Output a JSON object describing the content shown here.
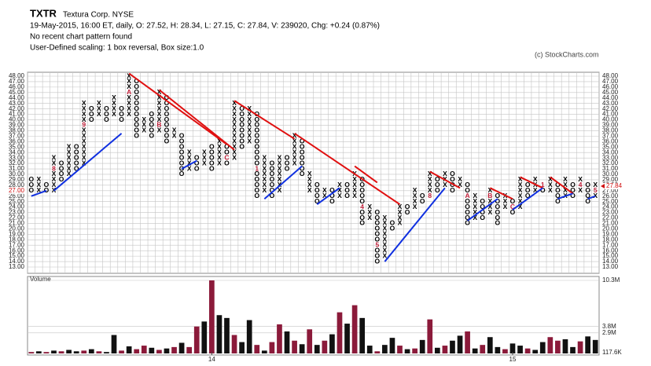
{
  "header": {
    "symbol": "TXTR",
    "company": "Textura Corp.  NYSE",
    "info": "19-May-2015, 16:00 ET, daily, O: 27.52, H: 28.34, L: 27.15, C: 27.84, V: 239020, Chg: +0.24 (0.87%)",
    "pattern": "No recent chart pattern found",
    "scaling": "User-Defined scaling: 1 box reversal, Box size:1.0",
    "copyright": "(c) StockCharts.com"
  },
  "chart_data": {
    "type": "pointfigure",
    "ylim": [
      13,
      48
    ],
    "yticks": [
      {
        "value": 13,
        "label": "13.00"
      },
      {
        "value": 14,
        "label": "14.00"
      },
      {
        "value": 15,
        "label": "15.00"
      },
      {
        "value": 16,
        "label": "16.00"
      },
      {
        "value": 17,
        "label": "17.00"
      },
      {
        "value": 18,
        "label": "18.00"
      },
      {
        "value": 19,
        "label": "19.00"
      },
      {
        "value": 20,
        "label": "20.00"
      },
      {
        "value": 21,
        "label": "21.00"
      },
      {
        "value": 22,
        "label": "22.00"
      },
      {
        "value": 23,
        "label": "23.00"
      },
      {
        "value": 24,
        "label": "24.00"
      },
      {
        "value": 25,
        "label": "25.00"
      },
      {
        "value": 26,
        "label": "26.00"
      },
      {
        "value": 27,
        "label": "27.00"
      },
      {
        "value": 28,
        "label": "28.00"
      },
      {
        "value": 29,
        "label": "29.00"
      },
      {
        "value": 30,
        "label": "30.00"
      },
      {
        "value": 31,
        "label": "31.00"
      },
      {
        "value": 32,
        "label": "32.00"
      },
      {
        "value": 33,
        "label": "33.00"
      },
      {
        "value": 34,
        "label": "34.00"
      },
      {
        "value": 35,
        "label": "35.00"
      },
      {
        "value": 36,
        "label": "36.00"
      },
      {
        "value": 37,
        "label": "37.00"
      },
      {
        "value": 38,
        "label": "38.00"
      },
      {
        "value": 39,
        "label": "39.00"
      },
      {
        "value": 40,
        "label": "40.00"
      },
      {
        "value": 41,
        "label": "41.00"
      },
      {
        "value": 42,
        "label": "42.00"
      },
      {
        "value": 43,
        "label": "43.00"
      },
      {
        "value": 44,
        "label": "44.00"
      },
      {
        "value": 45,
        "label": "45.00"
      },
      {
        "value": 46,
        "label": "46.00"
      },
      {
        "value": 47,
        "label": "47.00"
      },
      {
        "value": 48,
        "label": "48.00"
      }
    ],
    "grid": true,
    "left_marker": {
      "value": 27,
      "label": "27.00"
    },
    "last_price": {
      "value": 27.84,
      "label": "27.84"
    },
    "columns": [
      {
        "type": "O",
        "low": 27,
        "high": 29
      },
      {
        "type": "X",
        "low": 27,
        "high": 29
      },
      {
        "type": "O",
        "low": 27,
        "high": 28
      },
      {
        "type": "X",
        "low": 27,
        "high": 33,
        "marker": "8",
        "marker_at": 31
      },
      {
        "type": "O",
        "low": 29,
        "high": 32
      },
      {
        "type": "X",
        "low": 30,
        "high": 35
      },
      {
        "type": "O",
        "low": 31,
        "high": 35
      },
      {
        "type": "X",
        "low": 32,
        "high": 43,
        "marker": "9",
        "marker_at": 39
      },
      {
        "type": "O",
        "low": 40,
        "high": 42
      },
      {
        "type": "X",
        "low": 41,
        "high": 43
      },
      {
        "type": "O",
        "low": 40,
        "high": 42
      },
      {
        "type": "X",
        "low": 41,
        "high": 44
      },
      {
        "type": "O",
        "low": 40,
        "high": 42
      },
      {
        "type": "X",
        "low": 41,
        "high": 48,
        "marker": "A",
        "marker_at": 45
      },
      {
        "type": "O",
        "low": 37,
        "high": 47
      },
      {
        "type": "X",
        "low": 38,
        "high": 40
      },
      {
        "type": "O",
        "low": 37,
        "high": 41
      },
      {
        "type": "X",
        "low": 38,
        "high": 45,
        "marker": "B",
        "marker_at": 39
      },
      {
        "type": "O",
        "low": 36,
        "high": 44
      },
      {
        "type": "X",
        "low": 37,
        "high": 38
      },
      {
        "type": "O",
        "low": 30,
        "high": 37
      },
      {
        "type": "X",
        "low": 31,
        "high": 34
      },
      {
        "type": "O",
        "low": 31,
        "high": 33
      },
      {
        "type": "X",
        "low": 32,
        "high": 34
      },
      {
        "type": "O",
        "low": 31,
        "high": 35
      },
      {
        "type": "X",
        "low": 32,
        "high": 36
      },
      {
        "type": "O",
        "low": 32,
        "high": 35,
        "marker": "C",
        "marker_at": 33
      },
      {
        "type": "X",
        "low": 33,
        "high": 43
      },
      {
        "type": "O",
        "low": 35,
        "high": 42
      },
      {
        "type": "X",
        "low": 36,
        "high": 42
      },
      {
        "type": "O",
        "low": 26,
        "high": 41,
        "marker": "1",
        "marker_at": 31
      },
      {
        "type": "X",
        "low": 27,
        "high": 33
      },
      {
        "type": "O",
        "low": 26,
        "high": 32
      },
      {
        "type": "X",
        "low": 27,
        "high": 33
      },
      {
        "type": "O",
        "low": 31,
        "high": 33
      },
      {
        "type": "X",
        "low": 32,
        "high": 37
      },
      {
        "type": "O",
        "low": 30,
        "high": 36,
        "marker": "2",
        "marker_at": 29
      },
      {
        "type": "X",
        "low": 27,
        "high": 30
      },
      {
        "type": "O",
        "low": 25,
        "high": 28
      },
      {
        "type": "X",
        "low": 26,
        "high": 27
      },
      {
        "type": "O",
        "low": 25,
        "high": 27
      },
      {
        "type": "X",
        "low": 26,
        "high": 28
      },
      {
        "type": "O",
        "low": 26,
        "high": 28
      },
      {
        "type": "X",
        "low": 26,
        "high": 30
      },
      {
        "type": "O",
        "low": 21,
        "high": 29,
        "marker": "4",
        "marker_at": 24
      },
      {
        "type": "X",
        "low": 22,
        "high": 24
      },
      {
        "type": "O",
        "low": 14,
        "high": 23,
        "marker": "5",
        "marker_at": 17
      },
      {
        "type": "X",
        "low": 15,
        "high": 22
      },
      {
        "type": "O",
        "low": 20,
        "high": 21
      },
      {
        "type": "X",
        "low": 21,
        "high": 24,
        "marker": "7",
        "marker_at": 25
      },
      {
        "type": "O",
        "low": 23,
        "high": 24
      },
      {
        "type": "X",
        "low": 24,
        "high": 27
      },
      {
        "type": "O",
        "low": 25,
        "high": 26
      },
      {
        "type": "X",
        "low": 26,
        "high": 30,
        "marker": "8",
        "marker_at": 26
      },
      {
        "type": "O",
        "low": 27,
        "high": 29
      },
      {
        "type": "X",
        "low": 28,
        "high": 30
      },
      {
        "type": "O",
        "low": 27,
        "high": 30
      },
      {
        "type": "X",
        "low": 28,
        "high": 29
      },
      {
        "type": "O",
        "low": 21,
        "high": 28,
        "marker": "A",
        "marker_at": 26
      },
      {
        "type": "X",
        "low": 22,
        "high": 26
      },
      {
        "type": "O",
        "low": 22,
        "high": 25
      },
      {
        "type": "X",
        "low": 23,
        "high": 27,
        "marker": "B",
        "marker_at": 26
      },
      {
        "type": "O",
        "low": 21,
        "high": 26
      },
      {
        "type": "X",
        "low": 24,
        "high": 26
      },
      {
        "type": "O",
        "low": 23,
        "high": 25,
        "marker": "C",
        "marker_at": 24
      },
      {
        "type": "X",
        "low": 24,
        "high": 29
      },
      {
        "type": "O",
        "low": 26,
        "high": 28
      },
      {
        "type": "X",
        "low": 27,
        "high": 29
      },
      {
        "type": "O",
        "low": 27,
        "high": 28,
        "marker": "1",
        "marker_at": 28
      },
      {
        "type": "X",
        "low": 27,
        "high": 29
      },
      {
        "type": "O",
        "low": 25,
        "high": 28
      },
      {
        "type": "X",
        "low": 26,
        "high": 29
      },
      {
        "type": "O",
        "low": 26,
        "high": 28
      },
      {
        "type": "X",
        "low": 27,
        "high": 29,
        "marker": "4",
        "marker_at": 28
      },
      {
        "type": "O",
        "low": 25,
        "high": 28
      },
      {
        "type": "X",
        "low": 26,
        "high": 28,
        "marker": "5",
        "marker_at": 27
      }
    ],
    "trendlines": [
      {
        "color": "#e01010",
        "from": [
          13,
          48.5
        ],
        "to": [
          26,
          35.5
        ]
      },
      {
        "color": "#e01010",
        "from": [
          17,
          45.5
        ],
        "to": [
          27,
          34.5
        ]
      },
      {
        "color": "#e01010",
        "from": [
          27,
          43.5
        ],
        "to": [
          35,
          36.5
        ]
      },
      {
        "color": "#e01010",
        "from": [
          35,
          37.5
        ],
        "to": [
          49,
          24.5
        ]
      },
      {
        "color": "#e01010",
        "from": [
          43,
          31.5
        ],
        "to": [
          46,
          28.5
        ]
      },
      {
        "color": "#e01010",
        "from": [
          53,
          30.5
        ],
        "to": [
          57,
          27.5
        ]
      },
      {
        "color": "#e01010",
        "from": [
          61,
          27.5
        ],
        "to": [
          64,
          25.5
        ]
      },
      {
        "color": "#e01010",
        "from": [
          65,
          29.5
        ],
        "to": [
          68,
          27.5
        ]
      },
      {
        "color": "#e01010",
        "from": [
          69,
          29.5
        ],
        "to": [
          72,
          26.5
        ]
      },
      {
        "color": "#1030e0",
        "from": [
          0,
          26
        ],
        "to": [
          2,
          27
        ]
      },
      {
        "color": "#1030e0",
        "from": [
          3,
          27
        ],
        "to": [
          12,
          37.5
        ]
      },
      {
        "color": "#1030e0",
        "from": [
          20,
          31
        ],
        "to": [
          22,
          32.5
        ]
      },
      {
        "color": "#1030e0",
        "from": [
          31,
          25.5
        ],
        "to": [
          36,
          31.5
        ]
      },
      {
        "color": "#1030e0",
        "from": [
          38,
          24.5
        ],
        "to": [
          41,
          27.5
        ]
      },
      {
        "color": "#1030e0",
        "from": [
          47,
          14
        ],
        "to": [
          55,
          27.5
        ]
      },
      {
        "color": "#1030e0",
        "from": [
          58,
          21.5
        ],
        "to": [
          62,
          25.5
        ]
      },
      {
        "color": "#1030e0",
        "from": [
          64,
          23.5
        ],
        "to": [
          68,
          27.5
        ]
      },
      {
        "color": "#1030e0",
        "from": [
          70,
          25.5
        ],
        "to": [
          72,
          26.5
        ]
      },
      {
        "color": "#1030e0",
        "from": [
          74,
          25.5
        ],
        "to": [
          75,
          26
        ]
      }
    ],
    "volume": {
      "title": "Volume",
      "ylim": [
        0,
        10.3
      ],
      "yticks": [
        {
          "value": 10.3,
          "label": "10.3M"
        },
        {
          "value": 3.8,
          "label": "3.8M"
        },
        {
          "value": 2.9,
          "label": "2.9M"
        },
        {
          "value": 0.1176,
          "label": "117.6K"
        }
      ],
      "values": [
        0.2,
        0.3,
        0.2,
        0.4,
        0.3,
        0.5,
        0.3,
        0.4,
        0.6,
        0.3,
        0.2,
        2.6,
        0.4,
        1.0,
        0.6,
        1.1,
        0.8,
        0.5,
        0.7,
        0.9,
        1.5,
        0.9,
        3.8,
        4.5,
        10.3,
        5.4,
        5.0,
        2.6,
        1.6,
        4.7,
        1.2,
        0.4,
        1.6,
        4.1,
        3.1,
        1.8,
        1.3,
        3.4,
        1.2,
        1.8,
        2.7,
        5.8,
        4.2,
        6.8,
        5.0,
        1.1,
        0.3,
        1.2,
        2.2,
        1.1,
        0.6,
        0.7,
        1.9,
        4.8,
        0.8,
        1.1,
        1.8,
        2.5,
        3.1,
        0.7,
        1.2,
        2.3,
        0.9,
        0.6,
        1.4,
        1.1,
        0.7,
        0.5,
        1.6,
        2.3,
        1.8,
        2.0,
        0.9,
        1.7,
        2.4,
        1.9
      ],
      "colors": [
        "#8b1a3a",
        "#111",
        "#8b1a3a",
        "#111",
        "#8b1a3a",
        "#111",
        "#111",
        "#8b1a3a",
        "#111",
        "#8b1a3a",
        "#111",
        "#111",
        "#8b1a3a",
        "#111",
        "#8b1a3a",
        "#8b1a3a",
        "#111",
        "#8b1a3a",
        "#111",
        "#8b1a3a",
        "#111",
        "#8b1a3a",
        "#8b1a3a",
        "#111",
        "#8b1a3a",
        "#111",
        "#111",
        "#8b1a3a",
        "#111",
        "#111",
        "#8b1a3a",
        "#111",
        "#8b1a3a",
        "#8b1a3a",
        "#111",
        "#8b1a3a",
        "#111",
        "#8b1a3a",
        "#111",
        "#8b1a3a",
        "#111",
        "#8b1a3a",
        "#111",
        "#8b1a3a",
        "#111",
        "#111",
        "#8b1a3a",
        "#111",
        "#111",
        "#8b1a3a",
        "#111",
        "#8b1a3a",
        "#111",
        "#8b1a3a",
        "#111",
        "#8b1a3a",
        "#111",
        "#111",
        "#8b1a3a",
        "#111",
        "#8b1a3a",
        "#111",
        "#111",
        "#8b1a3a",
        "#111",
        "#111",
        "#8b1a3a",
        "#111",
        "#111",
        "#8b1a3a",
        "#8b1a3a",
        "#111",
        "#111",
        "#8b1a3a",
        "#111",
        "#111"
      ],
      "xlabels": [
        {
          "value": 24,
          "label": "14"
        },
        {
          "value": 64,
          "label": "15"
        }
      ]
    }
  }
}
